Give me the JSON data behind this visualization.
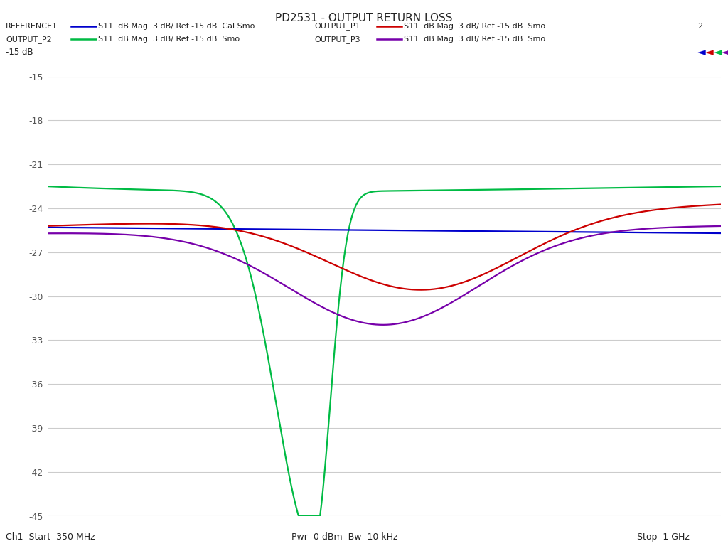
{
  "title": "PD2531 - OUTPUT RETURN LOSS",
  "bottom_left": "Ch1  Start  350 MHz",
  "bottom_center": "Pwr  0 dBm  Bw  10 kHz",
  "bottom_right": "Stop  1 GHz",
  "xmin": 350,
  "xmax": 1000,
  "ymin": -45,
  "ymax": -15,
  "yticks": [
    -15,
    -18,
    -21,
    -24,
    -27,
    -30,
    -33,
    -36,
    -39,
    -42,
    -45
  ],
  "trace_colors": {
    "ref1": "#0000cc",
    "p1": "#cc0000",
    "p2": "#00bb44",
    "p3": "#7700aa"
  },
  "background": "#ffffff",
  "grid_color": "#cccccc"
}
